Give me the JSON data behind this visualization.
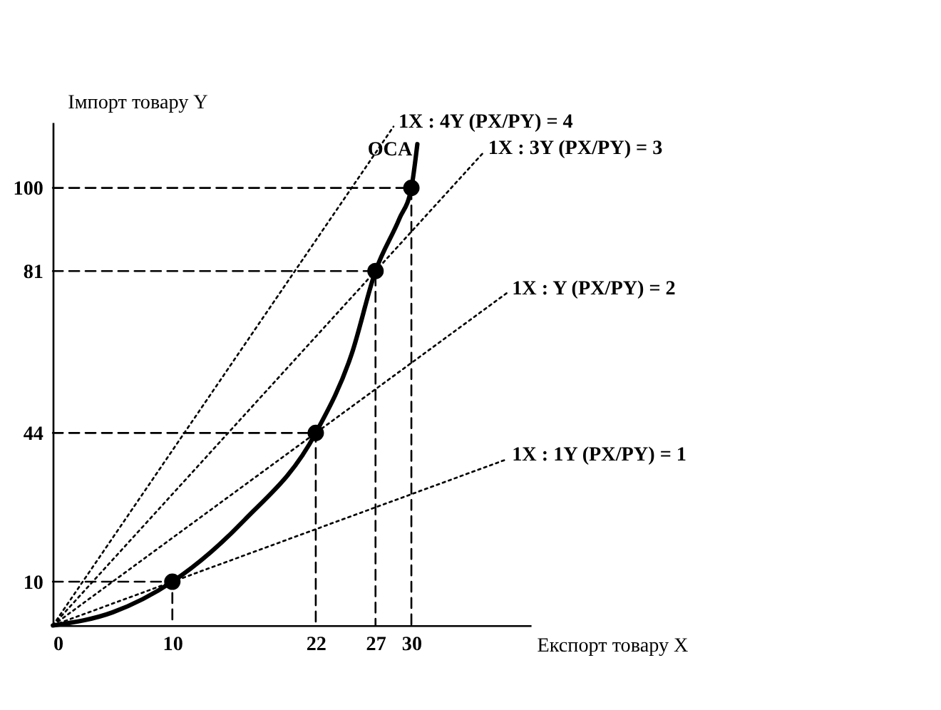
{
  "chart_data": {
    "type": "line",
    "xlabel": "Експорт товару X",
    "ylabel": "Імпорт товару Y",
    "xlim": [
      0,
      40
    ],
    "ylim": [
      0,
      115
    ],
    "xticks": [
      0,
      10,
      22,
      27,
      30
    ],
    "yticks": [
      10,
      44,
      81,
      100
    ],
    "grid": false,
    "legend": false,
    "series": [
      {
        "line_style": "dotted",
        "name": "1X : 1Y (PX/PY) = 1",
        "color": "#000000",
        "x": [
          0,
          38
        ],
        "values": [
          0,
          38
        ]
      },
      {
        "line_style": "dotted",
        "name": "1X : Y (PX/PY) = 2",
        "color": "#000000",
        "x": [
          0,
          38
        ],
        "values": [
          0,
          76
        ]
      },
      {
        "line_style": "dotted",
        "name": "1X : 3Y (PX/PY) = 3",
        "color": "#000000",
        "x": [
          0,
          36
        ],
        "values": [
          0,
          108
        ]
      },
      {
        "line_style": "dotted",
        "name": "1X : 4Y (PX/PY) = 4",
        "color": "#000000",
        "x": [
          0,
          28.5
        ],
        "values": [
          0,
          114
        ]
      },
      {
        "line_style": "dashed",
        "color": "#000000",
        "x": [
          0,
          10,
          10
        ],
        "values": [
          10,
          10,
          0
        ]
      },
      {
        "line_style": "dashed",
        "color": "#000000",
        "x": [
          0,
          22,
          22
        ],
        "values": [
          44,
          44,
          0
        ]
      },
      {
        "line_style": "dashed",
        "color": "#000000",
        "x": [
          0,
          27,
          27
        ],
        "values": [
          81,
          81,
          0
        ]
      },
      {
        "line_style": "dashed",
        "color": "#000000",
        "x": [
          0,
          30,
          30
        ],
        "values": [
          100,
          100,
          0
        ]
      },
      {
        "line_style": "solid",
        "name": "OCA",
        "color": "#000000",
        "x": [
          0,
          5,
          10,
          16,
          22,
          25,
          27,
          29,
          30,
          30.5
        ],
        "values": [
          0,
          3,
          10,
          24,
          44,
          62,
          81,
          93,
          100,
          110
        ]
      },
      {
        "type": "scatter",
        "marker": "circle",
        "color": "#000000",
        "x": [
          10,
          22,
          27,
          30
        ],
        "values": [
          10,
          44,
          81,
          100
        ]
      }
    ]
  }
}
